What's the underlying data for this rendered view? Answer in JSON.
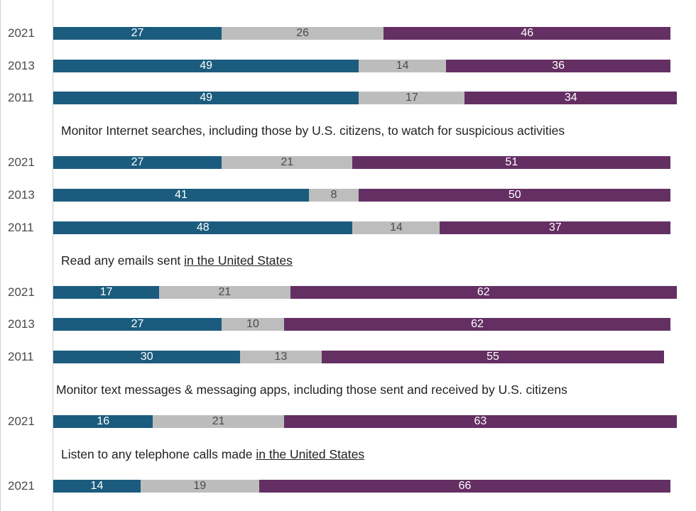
{
  "chart_data": {
    "type": "bar",
    "orientation": "horizontal",
    "stacked": true,
    "colors": [
      "#1b5c7e",
      "#bdbdbd",
      "#642f63"
    ],
    "groups": [
      {
        "title": "",
        "underlined": "",
        "rows": [
          {
            "year": "2021",
            "values": [
              27,
              26,
              46
            ]
          },
          {
            "year": "2013",
            "values": [
              49,
              14,
              36
            ]
          },
          {
            "year": "2011",
            "values": [
              49,
              17,
              34
            ]
          }
        ]
      },
      {
        "title": "Monitor Internet searches, including those by U.S. citizens, to watch for suspicious activities",
        "underlined": "",
        "rows": [
          {
            "year": "2021",
            "values": [
              27,
              21,
              51
            ]
          },
          {
            "year": "2013",
            "values": [
              41,
              8,
              50
            ]
          },
          {
            "year": "2011",
            "values": [
              48,
              14,
              37
            ]
          }
        ]
      },
      {
        "title": "Read any emails sent ",
        "underlined": "in the United States",
        "rows": [
          {
            "year": "2021",
            "values": [
              17,
              21,
              62
            ]
          },
          {
            "year": "2013",
            "values": [
              27,
              10,
              62
            ]
          },
          {
            "year": "2011",
            "values": [
              30,
              13,
              55
            ]
          }
        ]
      },
      {
        "title": "Monitor text messages & messaging apps, including those sent and received by U.S. citizens",
        "underlined": "",
        "rows": [
          {
            "year": "2021",
            "values": [
              16,
              21,
              63
            ]
          }
        ]
      },
      {
        "title": "Listen to any telephone calls made ",
        "underlined": "in the United States",
        "rows": [
          {
            "year": "2021",
            "values": [
              14,
              19,
              66
            ]
          }
        ]
      }
    ]
  }
}
